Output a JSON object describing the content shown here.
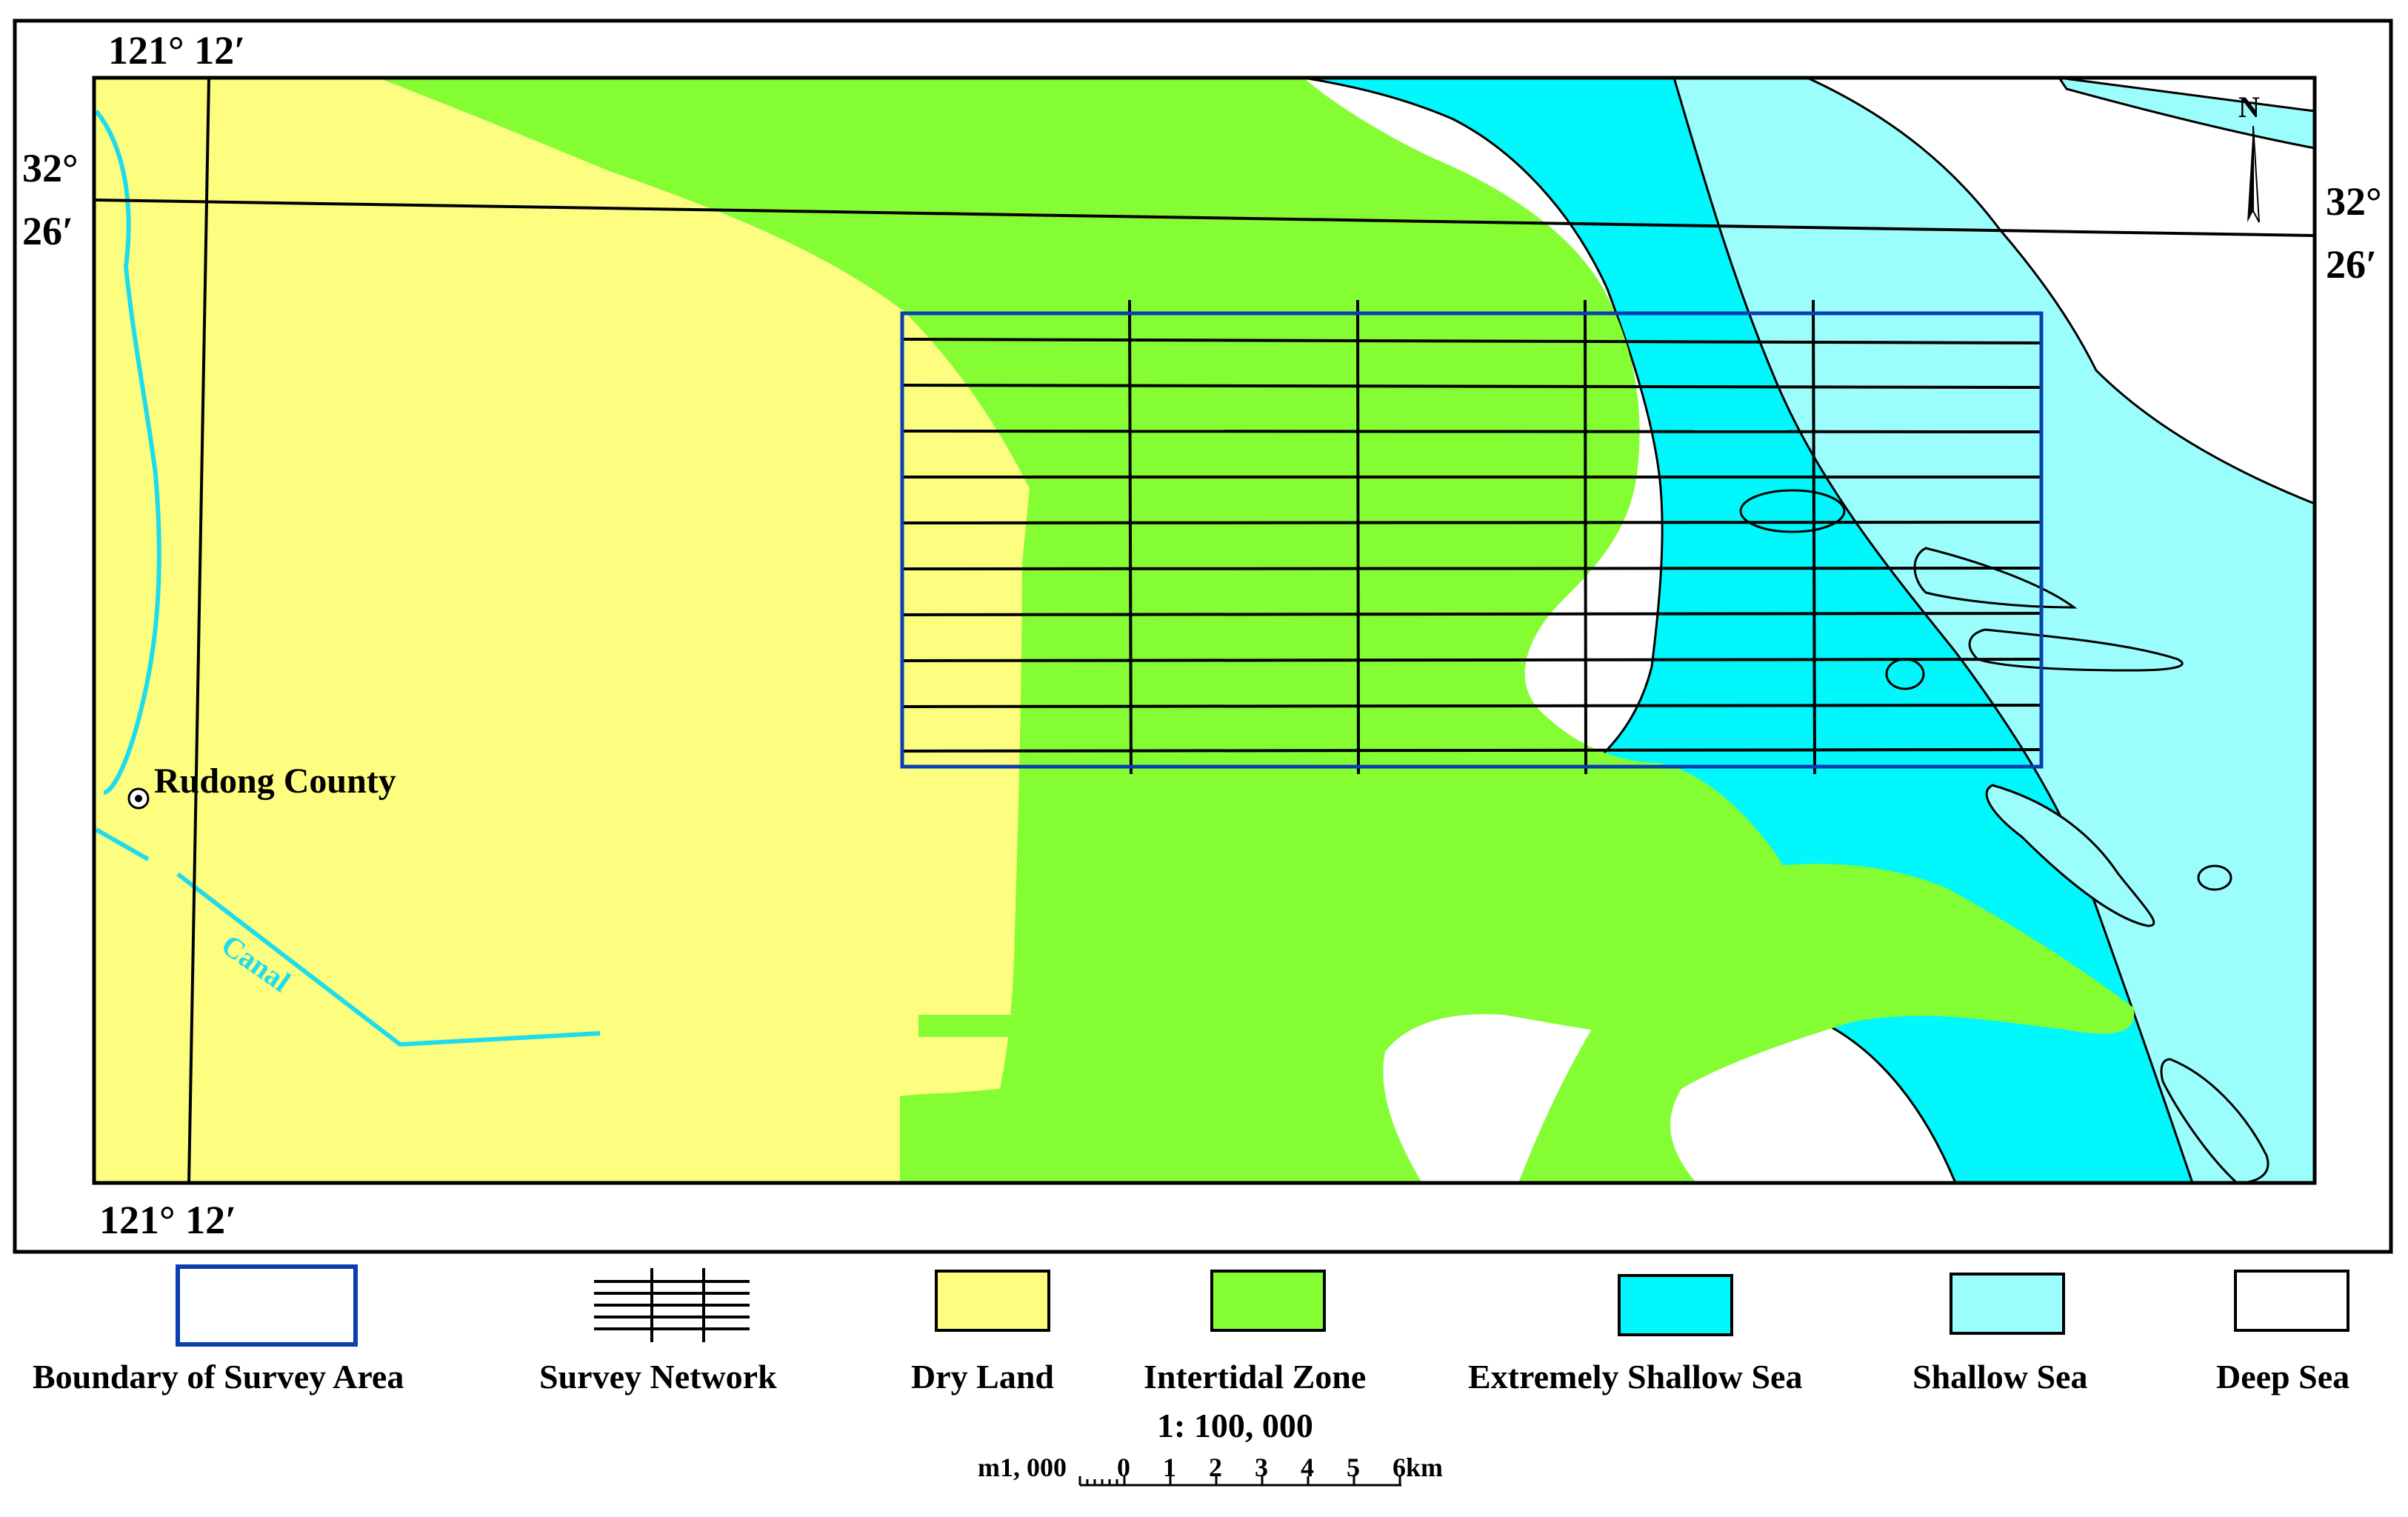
{
  "coordinates": {
    "top_longitude": "121° 12′",
    "bottom_longitude": "121° 12′",
    "left_lat_deg": "32°",
    "left_lat_min": "26′",
    "right_lat_deg": "32°",
    "right_lat_min": "26′"
  },
  "places": {
    "town": "Rudong County",
    "canal": "Canal"
  },
  "north_arrow": {
    "label": "N"
  },
  "legend": {
    "items": [
      {
        "label": "Boundary of Survey Area",
        "icon": "survey-boundary-swatch",
        "color": "#0b3fb0"
      },
      {
        "label": "Survey Network",
        "icon": "survey-network-swatch",
        "color": "#000000"
      },
      {
        "label": "Dry Land",
        "icon": "dry-land-swatch",
        "color": "#fdfd80"
      },
      {
        "label": "Intertidal Zone",
        "icon": "intertidal-swatch",
        "color": "#84fd33"
      },
      {
        "label": "Extremely Shallow Sea",
        "icon": "extremely-shallow-sea-swatch",
        "color": "#00f7fb"
      },
      {
        "label": "Shallow Sea",
        "icon": "shallow-sea-swatch",
        "color": "#9cfdfd"
      },
      {
        "label": "Deep Sea",
        "icon": "deep-sea-swatch",
        "color": "#ffffff"
      }
    ]
  },
  "scale": {
    "ratio": "1: 100, 000",
    "unit_left": "m1, 000",
    "ticks": [
      "0",
      "1",
      "2",
      "3",
      "4",
      "5",
      "6km"
    ]
  },
  "colors": {
    "dry_land": "#fdfd80",
    "intertidal": "#84fd33",
    "extremely_shallow": "#00f7fb",
    "shallow": "#9cfdfd",
    "deep": "#ffffff",
    "boundary": "#0b3fb0",
    "canal": "#1fdcec"
  }
}
